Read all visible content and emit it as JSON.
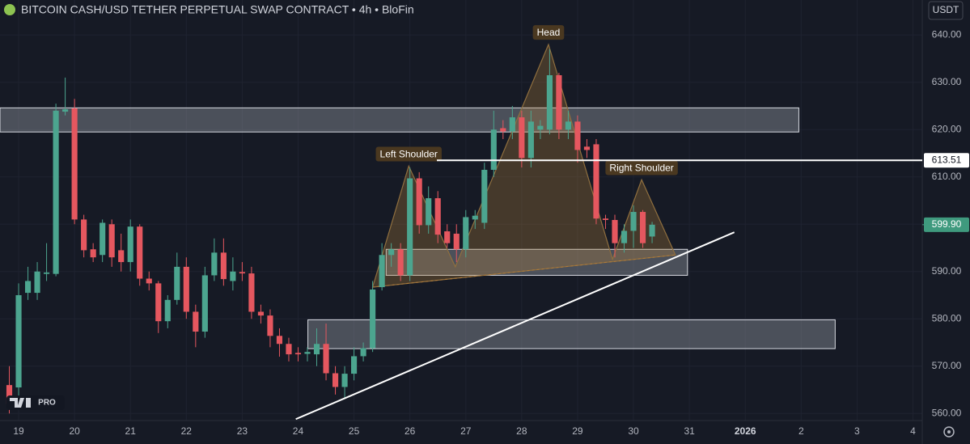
{
  "chart_data": {
    "type": "candlestick",
    "title": "BITCOIN CASH/USD TETHER PERPETUAL SWAP CONTRACT • 4h • BloFin",
    "currency": "USDT",
    "watermark": "PRO",
    "up_color": "#4ca58f",
    "down_color": "#e5575f",
    "grid": true,
    "xlim": [
      -8,
      388
    ],
    "ylim": [
      558.5,
      647.4
    ],
    "xticks": [
      {
        "value": 0,
        "label": "19"
      },
      {
        "value": 24,
        "label": "20"
      },
      {
        "value": 48,
        "label": "21"
      },
      {
        "value": 72,
        "label": "22"
      },
      {
        "value": 96,
        "label": "23"
      },
      {
        "value": 120,
        "label": "24"
      },
      {
        "value": 144,
        "label": "25"
      },
      {
        "value": 168,
        "label": "26"
      },
      {
        "value": 192,
        "label": "27"
      },
      {
        "value": 216,
        "label": "28"
      },
      {
        "value": 240,
        "label": "29"
      },
      {
        "value": 264,
        "label": "30"
      },
      {
        "value": 288,
        "label": "31"
      },
      {
        "value": 312,
        "label": "2026"
      },
      {
        "value": 336,
        "label": "2"
      },
      {
        "value": 360,
        "label": "3"
      },
      {
        "value": 384,
        "label": "4"
      }
    ],
    "yticks": [
      {
        "value": 560,
        "label": "560.00"
      },
      {
        "value": 570,
        "label": "570.00"
      },
      {
        "value": 580,
        "label": "580.00"
      },
      {
        "value": 590,
        "label": "590.00"
      },
      {
        "value": 600,
        "label": "600.00"
      },
      {
        "value": 610,
        "label": "610.00"
      },
      {
        "value": 620,
        "label": "620.00"
      },
      {
        "value": 630,
        "label": "630.00"
      },
      {
        "value": 640,
        "label": "640.00"
      }
    ],
    "x": [
      -4,
      0,
      4,
      8,
      12,
      16,
      20,
      24,
      28,
      32,
      36,
      40,
      44,
      48,
      52,
      56,
      60,
      64,
      68,
      72,
      76,
      80,
      84,
      88,
      92,
      96,
      100,
      104,
      108,
      112,
      116,
      120,
      124,
      128,
      132,
      136,
      140,
      144,
      148,
      152,
      156,
      160,
      164,
      168,
      172,
      176,
      180,
      184,
      188,
      192,
      196,
      200,
      204,
      208,
      212,
      216,
      220,
      224,
      228,
      232,
      236,
      240,
      244,
      248,
      252,
      256,
      260,
      264,
      268,
      272
    ],
    "open": [
      566,
      565.5,
      585.5,
      585.5,
      589.5,
      589.5,
      623.8,
      624.5,
      601,
      594.7,
      593.5,
      600,
      594.5,
      592,
      599.5,
      588.5,
      587.5,
      579.5,
      584,
      591,
      581.5,
      577.3,
      589.2,
      594,
      588,
      589.9,
      589.6,
      581.5,
      580.7,
      576.4,
      574.7,
      572.8,
      572.6,
      572.5,
      574.7,
      568.5,
      565.6,
      568.4,
      572.1,
      573.8,
      586.7,
      593.5,
      594.7,
      589.2,
      609.7,
      599.8,
      605.5,
      598.5,
      598,
      594.7,
      601,
      600.3,
      611.5,
      620.3,
      619.6,
      622.6,
      614,
      620,
      620,
      631.5,
      620,
      621.7,
      616.4,
      616.9,
      601.2,
      600.9,
      596,
      598.6,
      602.6,
      597.4
    ],
    "high": [
      570,
      587.5,
      591,
      592,
      596,
      625.5,
      631,
      626.5,
      602,
      596,
      601,
      601,
      598,
      601,
      600,
      590,
      588,
      585,
      594,
      593,
      583,
      591,
      597,
      597,
      593,
      592,
      591,
      583,
      582,
      578,
      576,
      574,
      574,
      578,
      579,
      570,
      570,
      574,
      575,
      588,
      596,
      596,
      596,
      612,
      611,
      608,
      607,
      600,
      600,
      603,
      603,
      613,
      624,
      622,
      625,
      624,
      624,
      622,
      637,
      632,
      624,
      623,
      618,
      618,
      602,
      602,
      600,
      604,
      603,
      600.5
    ],
    "low": [
      560,
      563,
      584,
      584,
      588,
      589,
      623,
      600,
      593,
      592,
      592,
      591,
      590,
      590,
      587,
      586,
      577,
      578,
      583,
      580,
      574,
      576,
      588,
      587,
      586,
      588,
      580,
      579,
      574,
      572,
      571,
      571,
      571,
      570,
      567,
      564,
      563,
      567,
      571,
      573,
      586,
      591,
      588,
      588,
      598,
      598,
      596,
      595,
      592,
      593,
      599,
      599,
      610,
      618,
      618,
      612,
      612,
      618,
      619,
      618,
      618,
      613,
      614,
      600,
      599,
      593,
      594,
      595,
      595,
      596
    ],
    "close": [
      562,
      585,
      588,
      590,
      589.8,
      624,
      624.3,
      601,
      594.5,
      593,
      600.3,
      593,
      592,
      599.5,
      588.5,
      587.5,
      579.5,
      584,
      591,
      581.5,
      577.3,
      589.2,
      594,
      588.4,
      590,
      589.6,
      581.5,
      580.7,
      576.4,
      574.7,
      572.5,
      572.5,
      573,
      574.7,
      568.5,
      565.6,
      568.4,
      572.1,
      573.8,
      586.2,
      593.5,
      594.7,
      589.2,
      609.7,
      599.8,
      605.5,
      597.8,
      596,
      594.7,
      601.5,
      601.8,
      611.5,
      620,
      619.6,
      622.6,
      614,
      621.7,
      620.8,
      631.5,
      620,
      621.7,
      615.7,
      615.7,
      601.2,
      600.9,
      596,
      598.6,
      602.6,
      596,
      599.9
    ],
    "last_price": {
      "value": 599.9,
      "label": "599.90"
    },
    "hline": 613.51,
    "zones": [
      {
        "x": [
          -8,
          335
        ],
        "y": [
          619.5,
          624.6
        ]
      },
      {
        "x": [
          157.8,
          287.2
        ],
        "y": [
          589.2,
          594.7
        ]
      },
      {
        "x": [
          124.2,
          350.6
        ],
        "y": [
          573.7,
          579.8
        ]
      }
    ],
    "trendline": {
      "x": [
        119,
        307.3
      ],
      "y": [
        558.8,
        598.3
      ]
    },
    "pattern": {
      "x": [
        152,
        167.5,
        187.5,
        227.5,
        255,
        267.5,
        282
      ],
      "y": [
        586.7,
        612.3,
        591,
        638,
        592.6,
        609.4,
        593.5
      ],
      "labels": [
        "Left Shoulder",
        "Head",
        "Right Shoulder"
      ]
    }
  }
}
